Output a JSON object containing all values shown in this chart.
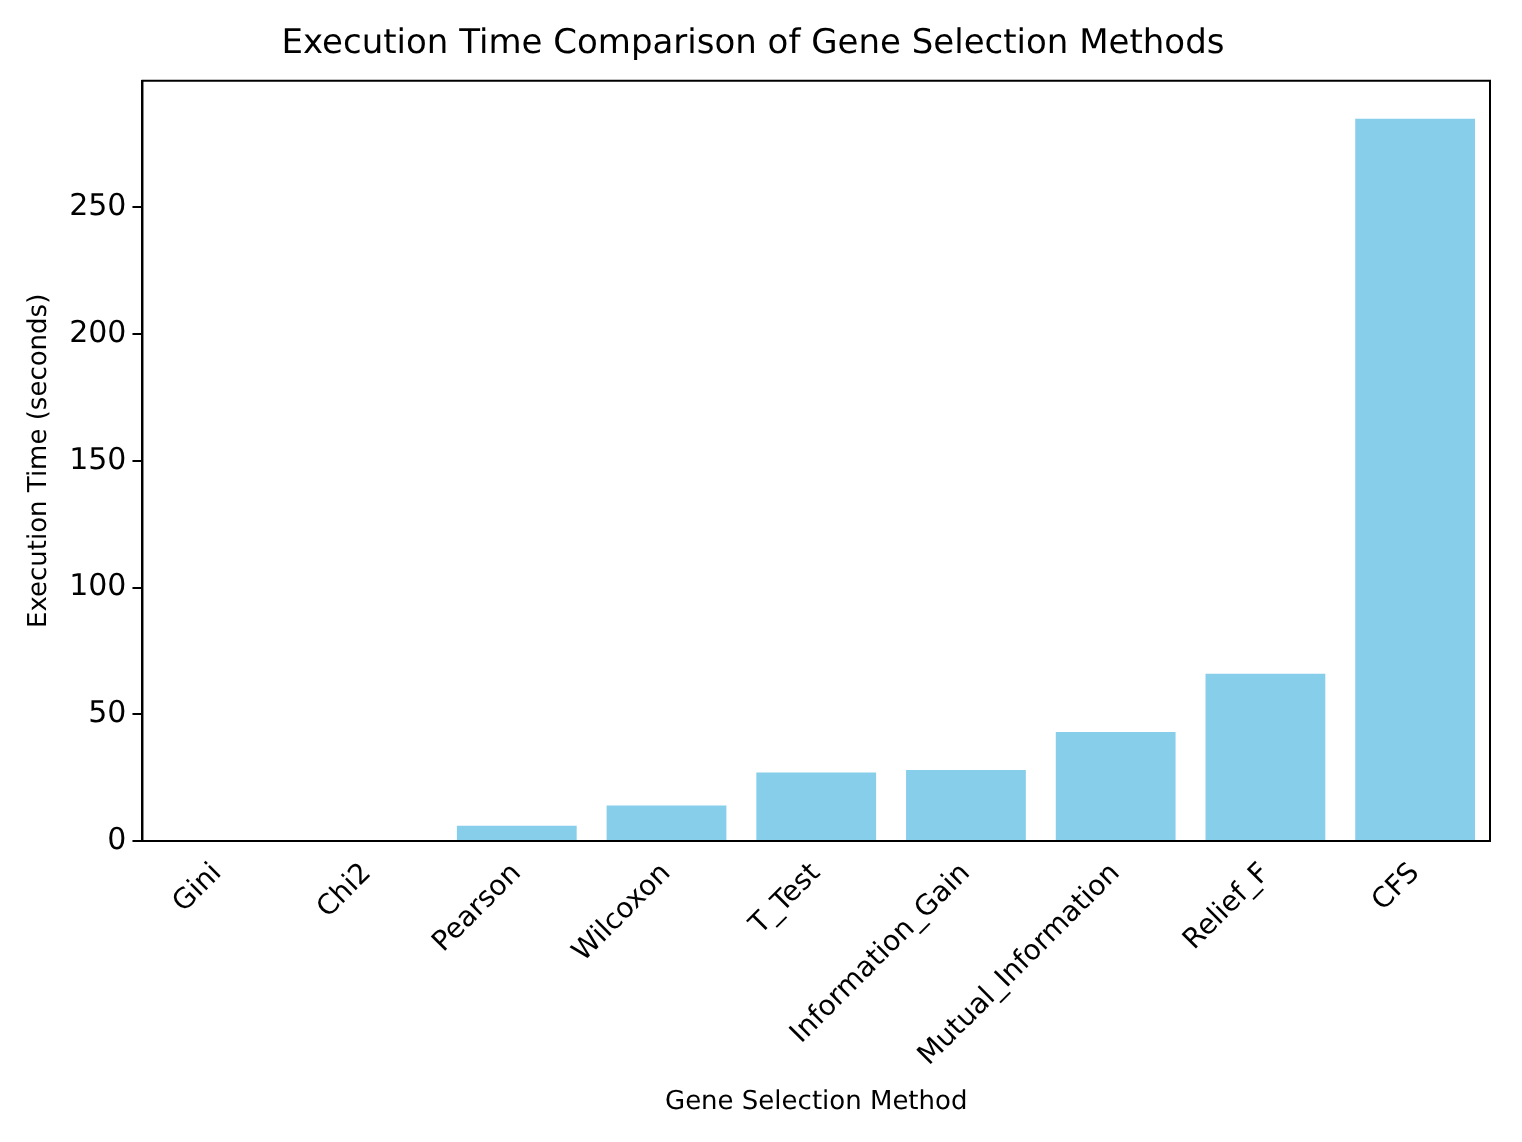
{
  "chart_data": {
    "type": "bar",
    "title": "Execution Time Comparison of Gene Selection Methods",
    "xlabel": "Gene Selection Method",
    "ylabel": "Execution Time (seconds)",
    "categories": [
      "Gini",
      "Chi2",
      "Pearson",
      "Wilcoxon",
      "T_Test",
      "Information_Gain",
      "Mutual_Information",
      "Relief_F",
      "CFS"
    ],
    "values": [
      0,
      0,
      6,
      14,
      27,
      28,
      43,
      66,
      285
    ],
    "color": "#87ceeb",
    "ylim": [
      0,
      300
    ],
    "yticks": [
      0,
      50,
      100,
      150,
      200,
      250
    ],
    "grid": false,
    "legend": false
  }
}
